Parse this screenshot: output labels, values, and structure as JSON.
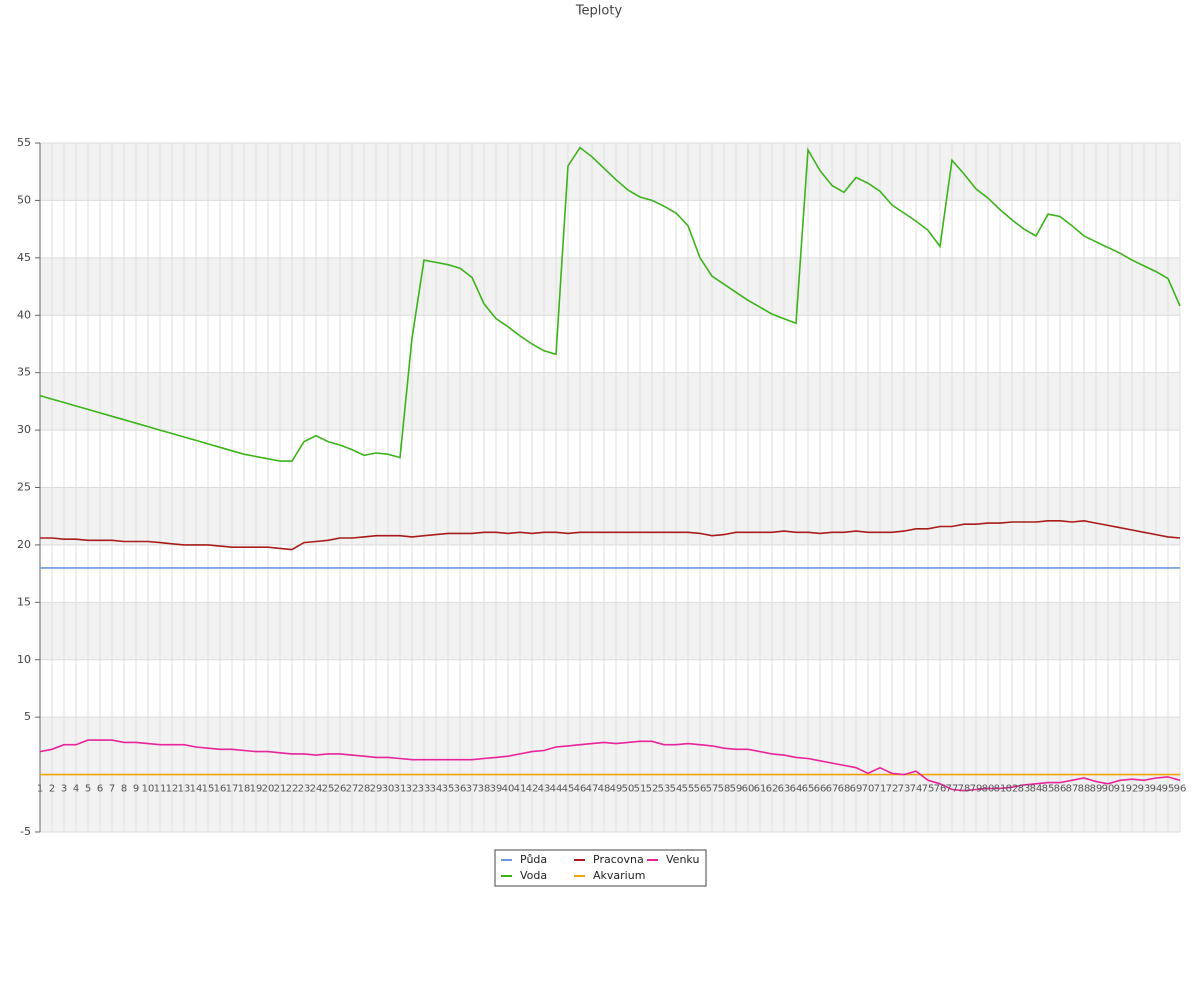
{
  "chart_data": {
    "type": "line",
    "title": "Teploty",
    "categories": [
      "1",
      "2",
      "3",
      "4",
      "5",
      "6",
      "7",
      "8",
      "9",
      "10",
      "11",
      "12",
      "13",
      "14",
      "15",
      "16",
      "17",
      "18",
      "19",
      "20",
      "21",
      "22",
      "23",
      "24",
      "25",
      "26",
      "27",
      "28",
      "29",
      "30",
      "31",
      "32",
      "33",
      "34",
      "35",
      "36",
      "37",
      "38",
      "39",
      "40",
      "41",
      "42",
      "43",
      "44",
      "45",
      "46",
      "47",
      "48",
      "49",
      "50",
      "51",
      "52",
      "53",
      "54",
      "55",
      "56",
      "57",
      "58",
      "59",
      "60",
      "61",
      "62",
      "63",
      "64",
      "65",
      "66",
      "67",
      "68",
      "69",
      "70",
      "71",
      "72",
      "73",
      "74",
      "75",
      "76",
      "77",
      "78",
      "79",
      "80",
      "81",
      "82",
      "83",
      "84",
      "85",
      "86",
      "87",
      "88",
      "89",
      "90",
      "91",
      "92",
      "93",
      "94",
      "95",
      "96"
    ],
    "series": [
      {
        "name": "Půda",
        "color": "#6a9be0",
        "values": [
          18,
          18,
          18,
          18,
          18,
          18,
          18,
          18,
          18,
          18,
          18,
          18,
          18,
          18,
          18,
          18,
          18,
          18,
          18,
          18,
          18,
          18,
          18,
          18,
          18,
          18,
          18,
          18,
          18,
          18,
          18,
          18,
          18,
          18,
          18,
          18,
          18,
          18,
          18,
          18,
          18,
          18,
          18,
          18,
          18,
          18,
          18,
          18,
          18,
          18,
          18,
          18,
          18,
          18,
          18,
          18,
          18,
          18,
          18,
          18,
          18,
          18,
          18,
          18,
          18,
          18,
          18,
          18,
          18,
          18,
          18,
          18,
          18,
          18,
          18,
          18,
          18,
          18,
          18,
          18,
          18,
          18,
          18,
          18,
          18,
          18,
          18,
          18,
          18,
          18,
          18,
          18,
          18,
          18,
          18,
          18
        ]
      },
      {
        "name": "Voda",
        "color": "#3cb31a",
        "values": [
          33.0,
          32.7,
          32.4,
          32.1,
          31.8,
          31.5,
          31.2,
          30.9,
          30.6,
          30.3,
          30.0,
          29.7,
          29.4,
          29.1,
          28.8,
          28.5,
          28.2,
          27.9,
          27.7,
          27.5,
          27.3,
          27.3,
          29.0,
          29.5,
          29.0,
          28.7,
          28.3,
          27.8,
          28.0,
          27.9,
          27.6,
          38.0,
          44.8,
          44.6,
          44.4,
          44.1,
          43.3,
          41.0,
          39.7,
          39.0,
          38.2,
          37.5,
          36.9,
          36.6,
          53.0,
          54.6,
          53.8,
          52.8,
          51.8,
          50.9,
          50.3,
          50.0,
          49.5,
          48.9,
          47.8,
          45.0,
          43.4,
          42.7,
          42.0,
          41.3,
          40.7,
          40.1,
          39.7,
          39.3,
          54.4,
          52.6,
          51.3,
          50.7,
          52.0,
          51.5,
          50.8,
          49.6,
          48.9,
          48.2,
          47.4,
          46.0,
          53.5,
          52.3,
          51.0,
          50.2,
          49.2,
          48.3,
          47.5,
          46.9,
          48.8,
          48.6,
          47.8,
          46.9,
          46.4,
          45.9,
          45.4,
          44.8,
          44.3,
          43.8,
          43.2,
          40.8
        ]
      },
      {
        "name": "Pracovna",
        "color": "#a81c1c",
        "values": [
          20.6,
          20.6,
          20.5,
          20.5,
          20.4,
          20.4,
          20.4,
          20.3,
          20.3,
          20.3,
          20.2,
          20.1,
          20.0,
          20.0,
          20.0,
          19.9,
          19.8,
          19.8,
          19.8,
          19.8,
          19.7,
          19.6,
          20.2,
          20.3,
          20.4,
          20.6,
          20.6,
          20.7,
          20.8,
          20.8,
          20.8,
          20.7,
          20.8,
          20.9,
          21.0,
          21.0,
          21.0,
          21.1,
          21.1,
          21.0,
          21.1,
          21.0,
          21.1,
          21.1,
          21.0,
          21.1,
          21.1,
          21.1,
          21.1,
          21.1,
          21.1,
          21.1,
          21.1,
          21.1,
          21.1,
          21.0,
          20.8,
          20.9,
          21.1,
          21.1,
          21.1,
          21.1,
          21.2,
          21.1,
          21.1,
          21.0,
          21.1,
          21.1,
          21.2,
          21.1,
          21.1,
          21.1,
          21.2,
          21.4,
          21.4,
          21.6,
          21.6,
          21.8,
          21.8,
          21.9,
          21.9,
          22.0,
          22.0,
          22.0,
          22.1,
          22.1,
          22.0,
          22.1,
          21.9,
          21.7,
          21.5,
          21.3,
          21.1,
          20.9,
          20.7,
          20.6
        ]
      },
      {
        "name": "Akvarium",
        "color": "#f0a30a",
        "values": [
          0,
          0,
          0,
          0,
          0,
          0,
          0,
          0,
          0,
          0,
          0,
          0,
          0,
          0,
          0,
          0,
          0,
          0,
          0,
          0,
          0,
          0,
          0,
          0,
          0,
          0,
          0,
          0,
          0,
          0,
          0,
          0,
          0,
          0,
          0,
          0,
          0,
          0,
          0,
          0,
          0,
          0,
          0,
          0,
          0,
          0,
          0,
          0,
          0,
          0,
          0,
          0,
          0,
          0,
          0,
          0,
          0,
          0,
          0,
          0,
          0,
          0,
          0,
          0,
          0,
          0,
          0,
          0,
          0,
          0,
          0,
          0,
          0,
          0,
          0,
          0,
          0,
          0,
          0,
          0,
          0,
          0,
          0,
          0,
          0,
          0,
          0,
          0,
          0,
          0,
          0,
          0,
          0,
          0,
          0,
          0
        ]
      },
      {
        "name": "Venku",
        "color": "#e8249a",
        "values": [
          2.0,
          2.2,
          2.6,
          2.6,
          3.0,
          3.0,
          3.0,
          2.8,
          2.8,
          2.7,
          2.6,
          2.6,
          2.6,
          2.4,
          2.3,
          2.2,
          2.2,
          2.1,
          2.0,
          2.0,
          1.9,
          1.8,
          1.8,
          1.7,
          1.8,
          1.8,
          1.7,
          1.6,
          1.5,
          1.5,
          1.4,
          1.3,
          1.3,
          1.3,
          1.3,
          1.3,
          1.3,
          1.4,
          1.5,
          1.6,
          1.8,
          2.0,
          2.1,
          2.4,
          2.5,
          2.6,
          2.7,
          2.8,
          2.7,
          2.8,
          2.9,
          2.9,
          2.6,
          2.6,
          2.7,
          2.6,
          2.5,
          2.3,
          2.2,
          2.2,
          2.0,
          1.8,
          1.7,
          1.5,
          1.4,
          1.2,
          1.0,
          0.8,
          0.6,
          0.1,
          0.6,
          0.1,
          0.0,
          0.3,
          -0.5,
          -0.8,
          -1.3,
          -1.4,
          -1.3,
          -1.2,
          -1.2,
          -1.1,
          -0.9,
          -0.8,
          -0.7,
          -0.7,
          -0.5,
          -0.3,
          -0.6,
          -0.8,
          -0.5,
          -0.4,
          -0.5,
          -0.3,
          -0.2,
          -0.5
        ]
      }
    ],
    "ylim": [
      -5,
      55
    ],
    "yticks": [
      -5,
      5,
      10,
      15,
      20,
      25,
      30,
      35,
      40,
      45,
      50,
      55
    ],
    "grid": true
  }
}
